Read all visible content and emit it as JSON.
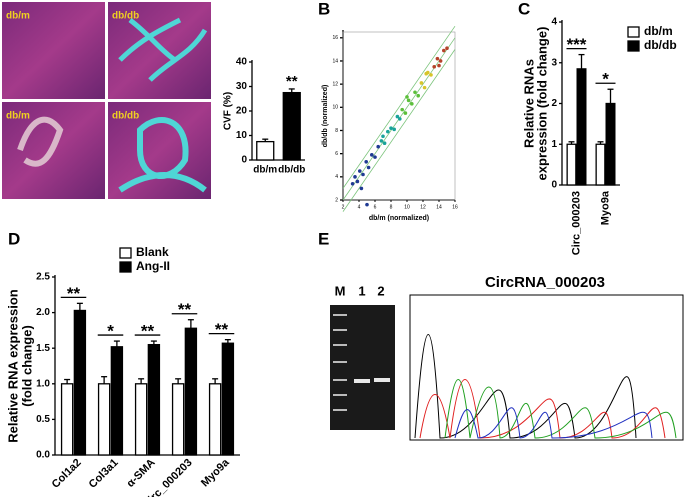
{
  "panels": [
    "A",
    "B",
    "C",
    "D",
    "E"
  ],
  "images": {
    "labels": [
      "db/m",
      "db/db",
      "db/m",
      "db/db"
    ]
  },
  "gel": {
    "lanes": [
      "M",
      "1",
      "2"
    ]
  },
  "chromatogram": {
    "title": "CircRNA_000203"
  },
  "chart_data": [
    {
      "type": "bar",
      "ylabel": "CVF (%)",
      "categories": [
        "db/m",
        "db/db"
      ],
      "values": [
        7.5,
        27.5
      ],
      "errors": [
        1,
        1.5
      ],
      "colors": [
        "#ffffff",
        "#000000"
      ],
      "ylim": [
        0,
        40
      ],
      "yticks": [
        0,
        10,
        20,
        30,
        40
      ],
      "annotations": [
        {
          "text": "**",
          "category": "db/db"
        }
      ]
    },
    {
      "type": "scatter",
      "xlabel": "db/m (normalized)",
      "ylabel": "db/db (normalized)",
      "xlim": [
        2,
        16
      ],
      "ylim": [
        2,
        16.5
      ],
      "xticks": [
        2,
        4,
        6,
        8,
        10,
        12,
        14,
        16
      ],
      "yticks": [
        2,
        4,
        6,
        8,
        10,
        12,
        14,
        16
      ],
      "diagonals": [
        -1,
        0,
        1
      ],
      "series": [
        {
          "color": "#1f3a93",
          "x": [
            3.2,
            3.8,
            4.1,
            4.5,
            4.9,
            5.2,
            5.6,
            6.0,
            4.3,
            5.0,
            6.4,
            3.5
          ],
          "values": [
            3.4,
            3.6,
            4.5,
            4.2,
            5.3,
            4.8,
            5.9,
            5.7,
            3.0,
            1.6,
            6.6,
            4.0
          ]
        },
        {
          "color": "#1aa39a",
          "x": [
            6.8,
            7.2,
            7.6,
            8.0,
            8.4,
            8.8,
            7.0,
            9.1
          ],
          "values": [
            7.1,
            6.9,
            7.9,
            8.2,
            8.1,
            9.2,
            7.5,
            9.0
          ]
        },
        {
          "color": "#5cbf3a",
          "x": [
            9.4,
            9.8,
            10.2,
            10.6,
            11.0,
            11.4,
            10.0
          ],
          "values": [
            9.8,
            9.5,
            10.6,
            10.3,
            11.3,
            11.0,
            10.9
          ]
        },
        {
          "color": "#d7c52a",
          "x": [
            11.8,
            12.2,
            12.6,
            13.0,
            12.4
          ],
          "values": [
            12.1,
            11.7,
            13.0,
            12.8,
            12.9
          ]
        },
        {
          "color": "#b5432a",
          "x": [
            13.4,
            13.8,
            14.2,
            14.6,
            15.0,
            14.0
          ],
          "values": [
            13.5,
            14.2,
            14.0,
            14.9,
            15.1,
            13.6
          ]
        }
      ]
    },
    {
      "type": "grouped_bar",
      "ylabel": [
        "Relative RNAs",
        "expression (fold change)"
      ],
      "categories": [
        "Circ_000203",
        "Myo9a"
      ],
      "series": [
        {
          "name": "db/m",
          "color": "#ffffff",
          "values": [
            1,
            1
          ],
          "errors": [
            0.06,
            0.06
          ]
        },
        {
          "name": "db/db",
          "color": "#000000",
          "values": [
            2.85,
            2.0
          ],
          "errors": [
            0.35,
            0.35
          ]
        }
      ],
      "ylim": [
        0,
        4
      ],
      "yticks": [
        0,
        1,
        2,
        3,
        4
      ],
      "significance": [
        "***",
        "*"
      ]
    },
    {
      "type": "grouped_bar",
      "ylabel": [
        "Relative RNA expression",
        "(fold change)"
      ],
      "categories": [
        "Col1a2",
        "Col3a1",
        "α-SMA",
        "Circ_000203",
        "Myo9a"
      ],
      "series": [
        {
          "name": "Blank",
          "color": "#ffffff",
          "values": [
            1,
            1,
            1,
            1,
            1
          ],
          "errors": [
            0.06,
            0.1,
            0.07,
            0.07,
            0.07
          ]
        },
        {
          "name": "Ang-II",
          "color": "#000000",
          "values": [
            2.03,
            1.52,
            1.55,
            1.78,
            1.57
          ],
          "errors": [
            0.1,
            0.08,
            0.05,
            0.12,
            0.05
          ]
        }
      ],
      "ylim": [
        0,
        2.5
      ],
      "yticks": [
        {
          "value": 0,
          "label": "0.0"
        },
        0.5,
        {
          "value": 1,
          "label": "1.0"
        },
        1.5,
        {
          "value": 2,
          "label": "2.0"
        },
        2.5
      ],
      "significance": [
        "**",
        "*",
        "**",
        "**",
        "**"
      ]
    }
  ]
}
